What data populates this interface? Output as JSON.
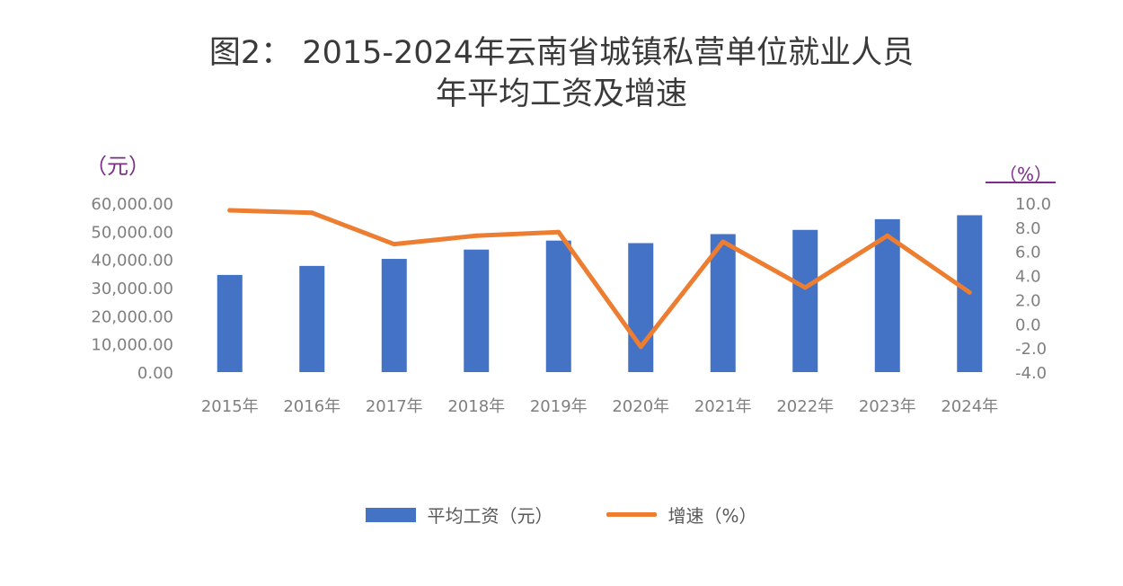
{
  "title_line1": "图2： 2015-2024年云南省城镇私营单位就业人员",
  "title_line2": "年平均工资及增速",
  "unit_left": "（元）",
  "unit_right": "（%）",
  "chart_data": {
    "type": "bar",
    "categories": [
      "2015年",
      "2016年",
      "2017年",
      "2018年",
      "2019年",
      "2020年",
      "2021年",
      "2022年",
      "2023年",
      "2024年"
    ],
    "series": [
      {
        "name": "平均工资（元）",
        "type": "bar",
        "axis": "left",
        "values": [
          34500,
          37700,
          40200,
          43500,
          46700,
          45800,
          49000,
          50500,
          54300,
          55700
        ]
      },
      {
        "name": "增速（%）",
        "type": "line",
        "axis": "right",
        "values": [
          9.4,
          9.2,
          6.6,
          7.3,
          7.6,
          -1.9,
          6.8,
          3.0,
          7.3,
          2.6
        ]
      }
    ],
    "y_left": {
      "ylim": [
        0,
        60000
      ],
      "ticks": [
        "0.00",
        "10,000.00",
        "20,000.00",
        "30,000.00",
        "40,000.00",
        "50,000.00",
        "60,000.00"
      ]
    },
    "y_right": {
      "ylim": [
        -4,
        10
      ],
      "ticks": [
        "-4.0",
        "-2.0",
        "0.0",
        "2.0",
        "4.0",
        "6.0",
        "8.0",
        "10.0"
      ]
    },
    "legend": {
      "placement": "bottom",
      "items": [
        "平均工资（元）",
        "增速（%）"
      ]
    },
    "colors": {
      "bar": "#4472c4",
      "line": "#ed7d31",
      "unit": "#7a2e86",
      "tick": "#7f7f7f"
    },
    "grid": false
  }
}
